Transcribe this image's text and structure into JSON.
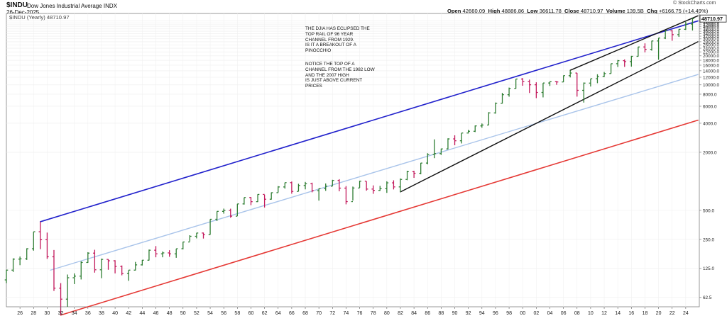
{
  "header": {
    "symbol": "$INDU",
    "name": "Dow Jones Industrial Average INDX",
    "date": "26-Dec-2025",
    "watermark": "© StockCharts.com",
    "legend": "$INDU (Yearly) 48710.97",
    "stats": {
      "open_label": "Open",
      "open": "42660.09",
      "high_label": "High",
      "high": "48886.86",
      "low_label": "Low",
      "low": "36611.78",
      "close_label": "Close",
      "close": "48710.97",
      "volume_label": "Volume",
      "volume": "139.5B",
      "chg_label": "Chg",
      "chg": "+6166.75 (+14.49%)"
    }
  },
  "annotations": {
    "note1": "THE DJIA HAS ECLIPSED THE\nTOP RAIL OF  96 YEAR\nCHANNEL FROM 1929.\nIS IT A BREAKOUT OF A\nPINOCCHIO",
    "note2": "NOTICE THE TOP OF A\nCHANNEL FROM THE 1982 LOW\nAND THE 2007 HIGH\nIS JUST ABOVE CURRENT\nPRICES"
  },
  "colors": {
    "up": "#2e7d32",
    "down": "#c2185b",
    "top_rail": "#2222cc",
    "mid_rail": "#a9c4ea",
    "bottom_rail": "#e53935",
    "channel_82": "#111111",
    "price_tag": "#222222"
  },
  "chart_data": {
    "type": "ohlc",
    "period": "yearly",
    "scale": "log",
    "ylim": [
      50,
      55000
    ],
    "xlim": [
      1924,
      2026
    ],
    "x_tick_labels": [
      "26",
      "28",
      "30",
      "32",
      "34",
      "36",
      "38",
      "40",
      "42",
      "44",
      "46",
      "48",
      "50",
      "52",
      "54",
      "56",
      "58",
      "60",
      "62",
      "64",
      "66",
      "68",
      "70",
      "72",
      "74",
      "76",
      "78",
      "80",
      "82",
      "84",
      "86",
      "88",
      "90",
      "92",
      "94",
      "96",
      "98",
      "00",
      "02",
      "04",
      "06",
      "08",
      "10",
      "12",
      "14",
      "16",
      "18",
      "20",
      "22",
      "24"
    ],
    "y_tick_labels": [
      {
        "value": 62.5,
        "label": "62.5"
      },
      {
        "value": 125,
        "label": "125.0"
      },
      {
        "value": 250,
        "label": "250.0"
      },
      {
        "value": 500,
        "label": "500.0"
      },
      {
        "value": 2000,
        "label": "2000.0"
      },
      {
        "value": 4000,
        "label": "4000.0"
      },
      {
        "value": 6000,
        "label": "6000.0"
      },
      {
        "value": 8000,
        "label": "8000.0"
      },
      {
        "value": 10000,
        "label": "10000.0"
      },
      {
        "value": 12000,
        "label": "12000.0"
      },
      {
        "value": 14000,
        "label": "14000.0"
      },
      {
        "value": 16000,
        "label": "16000.0"
      },
      {
        "value": 18000,
        "label": "18000.0"
      },
      {
        "value": 20000,
        "label": "20000.0"
      },
      {
        "value": 22000,
        "label": "22000.0"
      },
      {
        "value": 24000,
        "label": "24000.0"
      },
      {
        "value": 26000,
        "label": "26000.0"
      },
      {
        "value": 28000,
        "label": "28000.0"
      },
      {
        "value": 30000,
        "label": "30000.0"
      },
      {
        "value": 32000,
        "label": "32000.0"
      },
      {
        "value": 34000,
        "label": "34000.0"
      },
      {
        "value": 36000,
        "label": "36000.0"
      },
      {
        "value": 38000,
        "label": "38000.0"
      },
      {
        "value": 40000,
        "label": "40000.0"
      },
      {
        "value": 42000,
        "label": "42000.0"
      },
      {
        "value": 44000,
        "label": "44000.0"
      },
      {
        "value": 46000,
        "label": "46000.0"
      }
    ],
    "price_label": "48710.97",
    "trendlines": [
      {
        "name": "top_rail",
        "color": "top_rail",
        "width": 1.6,
        "from": [
          1929,
          381
        ],
        "to": [
          2025.8,
          46000
        ]
      },
      {
        "name": "bottom_rail",
        "color": "bottom_rail",
        "width": 1.6,
        "from": [
          1932,
          41
        ],
        "to": [
          2025.8,
          4300
        ]
      },
      {
        "name": "mid_rail",
        "color": "mid_rail",
        "width": 1.4,
        "from": [
          1930.5,
          120
        ],
        "to": [
          2025.8,
          12800
        ]
      },
      {
        "name": "channel_82_low",
        "color": "channel_82",
        "width": 1.4,
        "from": [
          1982,
          777
        ],
        "to": [
          2025.8,
          28000
        ]
      },
      {
        "name": "channel_07_high",
        "color": "channel_82",
        "width": 1.4,
        "from": [
          2007,
          14165
        ],
        "to": [
          2025.8,
          52000
        ]
      }
    ],
    "bars": [
      {
        "year": 1924,
        "open": 95,
        "high": 121,
        "low": 88,
        "close": 120
      },
      {
        "year": 1925,
        "open": 120,
        "high": 159,
        "low": 115,
        "close": 156
      },
      {
        "year": 1926,
        "open": 156,
        "high": 166,
        "low": 135,
        "close": 157
      },
      {
        "year": 1927,
        "open": 157,
        "high": 202,
        "low": 153,
        "close": 200
      },
      {
        "year": 1928,
        "open": 200,
        "high": 300,
        "low": 191,
        "close": 300
      },
      {
        "year": 1929,
        "open": 300,
        "high": 381,
        "low": 198,
        "close": 248
      },
      {
        "year": 1930,
        "open": 248,
        "high": 294,
        "low": 157,
        "close": 165
      },
      {
        "year": 1931,
        "open": 165,
        "high": 194,
        "low": 73,
        "close": 78
      },
      {
        "year": 1932,
        "open": 78,
        "high": 88,
        "low": 41,
        "close": 60
      },
      {
        "year": 1933,
        "open": 60,
        "high": 108,
        "low": 50,
        "close": 100
      },
      {
        "year": 1934,
        "open": 100,
        "high": 111,
        "low": 86,
        "close": 104
      },
      {
        "year": 1935,
        "open": 104,
        "high": 148,
        "low": 96,
        "close": 144
      },
      {
        "year": 1936,
        "open": 144,
        "high": 184,
        "low": 143,
        "close": 180
      },
      {
        "year": 1937,
        "open": 180,
        "high": 195,
        "low": 113,
        "close": 121
      },
      {
        "year": 1938,
        "open": 121,
        "high": 158,
        "low": 99,
        "close": 155
      },
      {
        "year": 1939,
        "open": 155,
        "high": 156,
        "low": 121,
        "close": 150
      },
      {
        "year": 1940,
        "open": 150,
        "high": 152,
        "low": 111,
        "close": 131
      },
      {
        "year": 1941,
        "open": 131,
        "high": 134,
        "low": 106,
        "close": 111
      },
      {
        "year": 1942,
        "open": 111,
        "high": 120,
        "low": 93,
        "close": 120
      },
      {
        "year": 1943,
        "open": 120,
        "high": 146,
        "low": 119,
        "close": 136
      },
      {
        "year": 1944,
        "open": 136,
        "high": 153,
        "low": 134,
        "close": 152
      },
      {
        "year": 1945,
        "open": 152,
        "high": 196,
        "low": 151,
        "close": 193
      },
      {
        "year": 1946,
        "open": 193,
        "high": 213,
        "low": 163,
        "close": 177
      },
      {
        "year": 1947,
        "open": 177,
        "high": 187,
        "low": 163,
        "close": 181
      },
      {
        "year": 1948,
        "open": 181,
        "high": 193,
        "low": 165,
        "close": 177
      },
      {
        "year": 1949,
        "open": 177,
        "high": 200,
        "low": 161,
        "close": 200
      },
      {
        "year": 1950,
        "open": 200,
        "high": 236,
        "low": 197,
        "close": 235
      },
      {
        "year": 1951,
        "open": 235,
        "high": 276,
        "low": 238,
        "close": 269
      },
      {
        "year": 1952,
        "open": 269,
        "high": 292,
        "low": 256,
        "close": 291
      },
      {
        "year": 1953,
        "open": 291,
        "high": 294,
        "low": 255,
        "close": 280
      },
      {
        "year": 1954,
        "open": 280,
        "high": 404,
        "low": 279,
        "close": 404
      },
      {
        "year": 1955,
        "open": 404,
        "high": 488,
        "low": 388,
        "close": 488
      },
      {
        "year": 1956,
        "open": 488,
        "high": 521,
        "low": 462,
        "close": 499
      },
      {
        "year": 1957,
        "open": 499,
        "high": 520,
        "low": 419,
        "close": 435
      },
      {
        "year": 1958,
        "open": 435,
        "high": 583,
        "low": 436,
        "close": 583
      },
      {
        "year": 1959,
        "open": 583,
        "high": 679,
        "low": 574,
        "close": 679
      },
      {
        "year": 1960,
        "open": 679,
        "high": 685,
        "low": 566,
        "close": 615
      },
      {
        "year": 1961,
        "open": 615,
        "high": 734,
        "low": 610,
        "close": 731
      },
      {
        "year": 1962,
        "open": 731,
        "high": 726,
        "low": 535,
        "close": 652
      },
      {
        "year": 1963,
        "open": 652,
        "high": 767,
        "low": 646,
        "close": 762
      },
      {
        "year": 1964,
        "open": 762,
        "high": 891,
        "low": 766,
        "close": 874
      },
      {
        "year": 1965,
        "open": 874,
        "high": 969,
        "low": 840,
        "close": 969
      },
      {
        "year": 1966,
        "open": 969,
        "high": 995,
        "low": 744,
        "close": 785
      },
      {
        "year": 1967,
        "open": 785,
        "high": 943,
        "low": 786,
        "close": 905
      },
      {
        "year": 1968,
        "open": 905,
        "high": 985,
        "low": 825,
        "close": 943
      },
      {
        "year": 1969,
        "open": 943,
        "high": 968,
        "low": 769,
        "close": 800
      },
      {
        "year": 1970,
        "open": 800,
        "high": 842,
        "low": 631,
        "close": 838
      },
      {
        "year": 1971,
        "open": 838,
        "high": 950,
        "low": 797,
        "close": 890
      },
      {
        "year": 1972,
        "open": 890,
        "high": 1036,
        "low": 889,
        "close": 1020
      },
      {
        "year": 1973,
        "open": 1020,
        "high": 1052,
        "low": 788,
        "close": 850
      },
      {
        "year": 1974,
        "open": 850,
        "high": 892,
        "low": 577,
        "close": 616
      },
      {
        "year": 1975,
        "open": 616,
        "high": 882,
        "low": 632,
        "close": 852
      },
      {
        "year": 1976,
        "open": 852,
        "high": 1014,
        "low": 858,
        "close": 1004
      },
      {
        "year": 1977,
        "open": 1004,
        "high": 999,
        "low": 800,
        "close": 831
      },
      {
        "year": 1978,
        "open": 831,
        "high": 907,
        "low": 742,
        "close": 805
      },
      {
        "year": 1979,
        "open": 805,
        "high": 897,
        "low": 796,
        "close": 838
      },
      {
        "year": 1980,
        "open": 838,
        "high": 1000,
        "low": 759,
        "close": 964
      },
      {
        "year": 1981,
        "open": 964,
        "high": 1024,
        "low": 824,
        "close": 875
      },
      {
        "year": 1982,
        "open": 875,
        "high": 1070,
        "low": 777,
        "close": 1046
      },
      {
        "year": 1983,
        "open": 1046,
        "high": 1287,
        "low": 1027,
        "close": 1258
      },
      {
        "year": 1984,
        "open": 1258,
        "high": 1287,
        "low": 1086,
        "close": 1211
      },
      {
        "year": 1985,
        "open": 1211,
        "high": 1553,
        "low": 1184,
        "close": 1546
      },
      {
        "year": 1986,
        "open": 1546,
        "high": 1955,
        "low": 1502,
        "close": 1895
      },
      {
        "year": 1987,
        "open": 1895,
        "high": 2722,
        "low": 1738,
        "close": 1938
      },
      {
        "year": 1988,
        "open": 1938,
        "high": 2183,
        "low": 1879,
        "close": 2168
      },
      {
        "year": 1989,
        "open": 2168,
        "high": 2791,
        "low": 2144,
        "close": 2753
      },
      {
        "year": 1990,
        "open": 2753,
        "high": 2999,
        "low": 2365,
        "close": 2633
      },
      {
        "year": 1991,
        "open": 2633,
        "high": 3168,
        "low": 2470,
        "close": 3168
      },
      {
        "year": 1992,
        "open": 3168,
        "high": 3413,
        "low": 3136,
        "close": 3301
      },
      {
        "year": 1993,
        "open": 3301,
        "high": 3794,
        "low": 3241,
        "close": 3754
      },
      {
        "year": 1994,
        "open": 3754,
        "high": 3978,
        "low": 3593,
        "close": 3834
      },
      {
        "year": 1995,
        "open": 3834,
        "high": 5216,
        "low": 3832,
        "close": 5117
      },
      {
        "year": 1996,
        "open": 5117,
        "high": 6560,
        "low": 5032,
        "close": 6448
      },
      {
        "year": 1997,
        "open": 6448,
        "high": 8259,
        "low": 6391,
        "close": 7908
      },
      {
        "year": 1998,
        "open": 7908,
        "high": 9374,
        "low": 7539,
        "close": 9181
      },
      {
        "year": 1999,
        "open": 9181,
        "high": 11497,
        "low": 9120,
        "close": 11497
      },
      {
        "year": 2000,
        "open": 11497,
        "high": 11750,
        "low": 9796,
        "close": 10787
      },
      {
        "year": 2001,
        "open": 10787,
        "high": 11337,
        "low": 8235,
        "close": 10021
      },
      {
        "year": 2002,
        "open": 10021,
        "high": 10635,
        "low": 7286,
        "close": 8341
      },
      {
        "year": 2003,
        "open": 8341,
        "high": 10453,
        "low": 7416,
        "close": 10453
      },
      {
        "year": 2004,
        "open": 10453,
        "high": 10854,
        "low": 9750,
        "close": 10783
      },
      {
        "year": 2005,
        "open": 10783,
        "high": 10940,
        "low": 10012,
        "close": 10718
      },
      {
        "year": 2006,
        "open": 10718,
        "high": 12510,
        "low": 10667,
        "close": 12463
      },
      {
        "year": 2007,
        "open": 12463,
        "high": 14165,
        "low": 11939,
        "close": 13264
      },
      {
        "year": 2008,
        "open": 13264,
        "high": 13279,
        "low": 7552,
        "close": 8776
      },
      {
        "year": 2009,
        "open": 8776,
        "high": 10580,
        "low": 6547,
        "close": 10428
      },
      {
        "year": 2010,
        "open": 10428,
        "high": 11585,
        "low": 9614,
        "close": 11578
      },
      {
        "year": 2011,
        "open": 11578,
        "high": 12876,
        "low": 10405,
        "close": 12218
      },
      {
        "year": 2012,
        "open": 12218,
        "high": 13610,
        "low": 12036,
        "close": 13104
      },
      {
        "year": 2013,
        "open": 13104,
        "high": 16588,
        "low": 13104,
        "close": 16577
      },
      {
        "year": 2014,
        "open": 16577,
        "high": 18103,
        "low": 15340,
        "close": 17823
      },
      {
        "year": 2015,
        "open": 17823,
        "high": 18351,
        "low": 15370,
        "close": 17425
      },
      {
        "year": 2016,
        "open": 17425,
        "high": 19988,
        "low": 15450,
        "close": 19763
      },
      {
        "year": 2017,
        "open": 19763,
        "high": 24876,
        "low": 19677,
        "close": 24719
      },
      {
        "year": 2018,
        "open": 24719,
        "high": 26951,
        "low": 21713,
        "close": 23327
      },
      {
        "year": 2019,
        "open": 23327,
        "high": 28701,
        "low": 22638,
        "close": 28538
      },
      {
        "year": 2020,
        "open": 28538,
        "high": 30637,
        "low": 18214,
        "close": 30606
      },
      {
        "year": 2021,
        "open": 30606,
        "high": 36679,
        "low": 29856,
        "close": 36338
      },
      {
        "year": 2022,
        "open": 36338,
        "high": 36952,
        "low": 28660,
        "close": 33147
      },
      {
        "year": 2023,
        "open": 33147,
        "high": 37778,
        "low": 31429,
        "close": 37690
      },
      {
        "year": 2024,
        "open": 37690,
        "high": 45073,
        "low": 37122,
        "close": 42544
      },
      {
        "year": 2025,
        "open": 42660,
        "high": 48886,
        "low": 36611,
        "close": 48710
      }
    ]
  }
}
